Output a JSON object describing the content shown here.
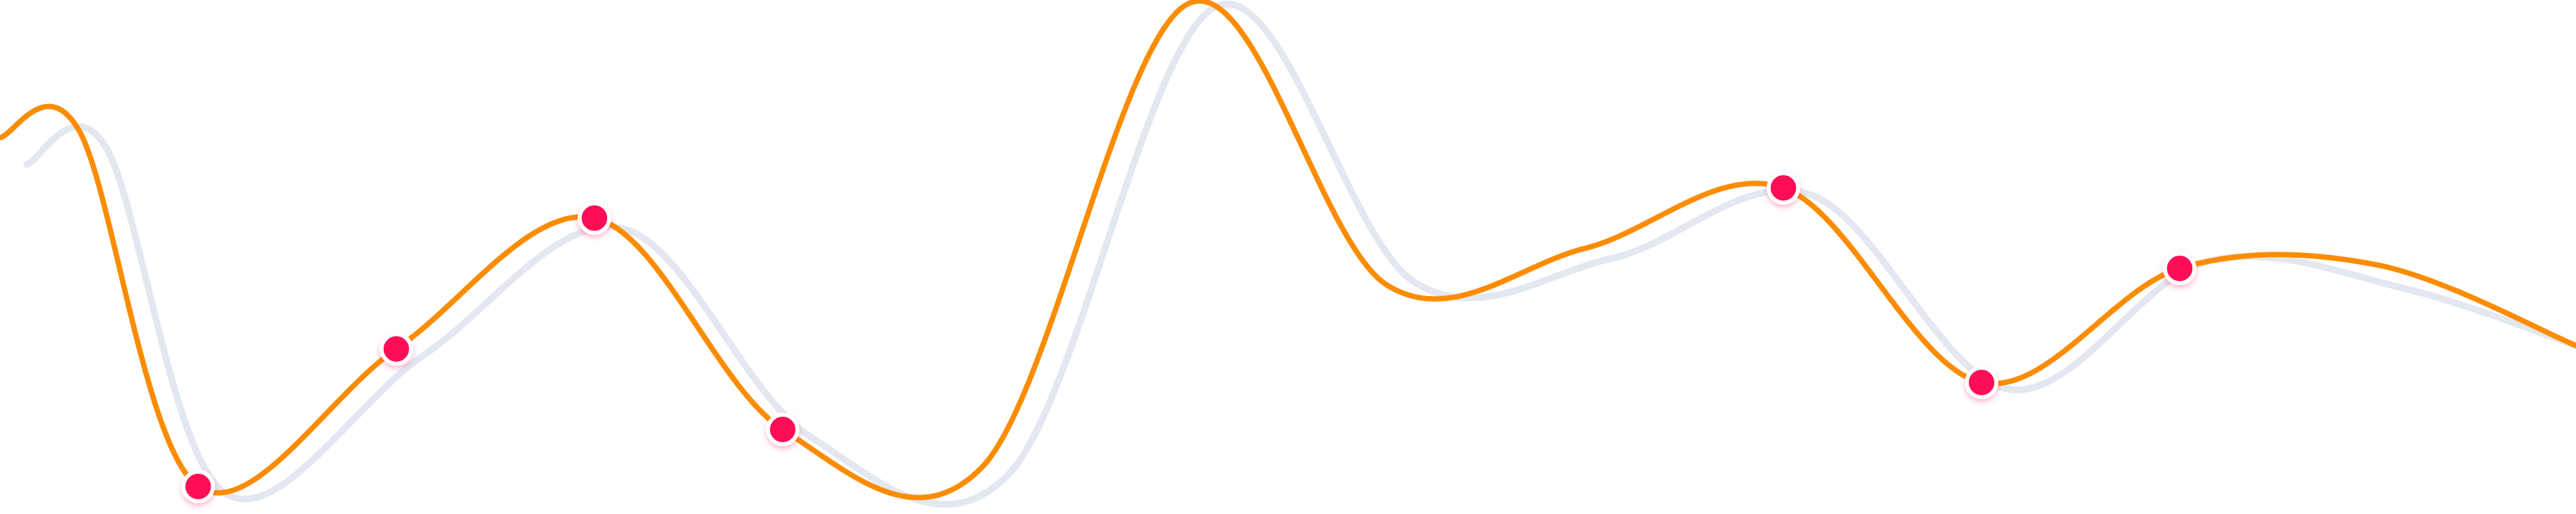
{
  "chart_data": {
    "type": "line",
    "title": "",
    "xlabel": "",
    "ylabel": "",
    "grid": false,
    "legend": "none",
    "x": [
      0,
      0.4,
      1,
      2,
      3,
      3.95,
      4.96,
      6,
      7,
      8,
      9,
      10,
      11,
      12,
      13
    ],
    "series": [
      {
        "role": "shadow",
        "color": "#e1e6ee",
        "values": [
          235,
          210,
          725,
          520,
          330,
          640,
          695,
          0,
          410,
          375,
          280,
          570,
          380,
          420,
          520
        ]
      },
      {
        "role": "primary",
        "color": "#fb8c00",
        "values": [
          205,
          195,
          725,
          520,
          325,
          640,
          695,
          5,
          425,
          370,
          280,
          570,
          400,
          395,
          515
        ]
      }
    ],
    "markers": {
      "color": "#ff0a54",
      "stroke": "#ffffff",
      "series": "primary",
      "x": [
        1,
        2,
        3,
        3.95,
        9,
        10,
        11
      ],
      "y": [
        725,
        520,
        325,
        640,
        280,
        570,
        400
      ]
    },
    "xlim": [
      0,
      13
    ],
    "ylim": [
      0,
      766
    ],
    "y_inverted": true
  }
}
